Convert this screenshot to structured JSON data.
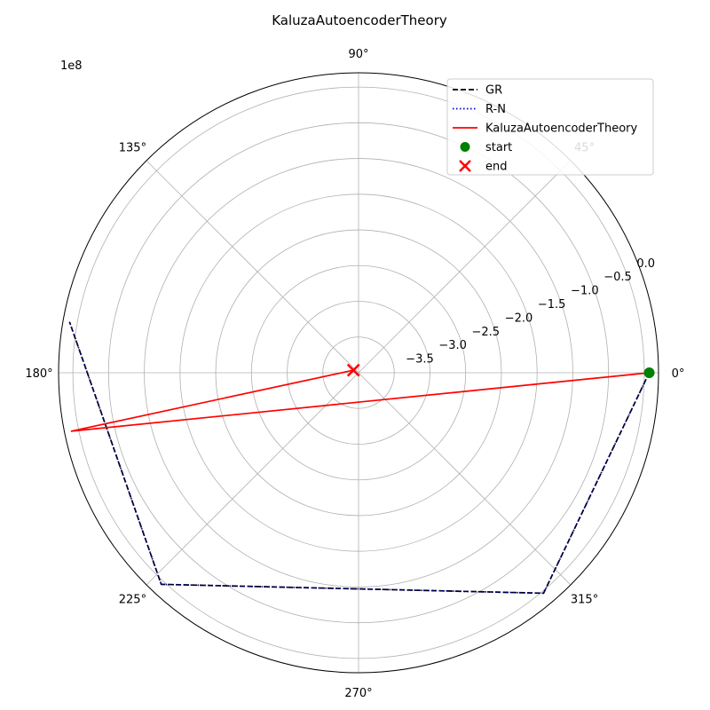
{
  "chart_data": {
    "type": "line",
    "subtype": "polar",
    "title": "KaluzaAutoencoderTheory",
    "r_offset_label": "1e8",
    "r_unit_multiplier": 100000000,
    "r_range": [
      -4.0,
      0.2
    ],
    "theta_unit": "degrees",
    "grid": true,
    "legend_position": "top-right",
    "theta_ticks": [
      {
        "deg": 0,
        "label": "0°"
      },
      {
        "deg": 45,
        "label": "45°"
      },
      {
        "deg": 90,
        "label": "90°"
      },
      {
        "deg": 135,
        "label": "135°"
      },
      {
        "deg": 180,
        "label": "180°"
      },
      {
        "deg": 225,
        "label": "225°"
      },
      {
        "deg": 270,
        "label": "270°"
      },
      {
        "deg": 315,
        "label": "315°"
      }
    ],
    "r_ticks": [
      {
        "value": -3.5,
        "label": "−3.5"
      },
      {
        "value": -3.0,
        "label": "−3.0"
      },
      {
        "value": -2.5,
        "label": "−2.5"
      },
      {
        "value": -2.0,
        "label": "−2.0"
      },
      {
        "value": -1.5,
        "label": "−1.5"
      },
      {
        "value": -1.0,
        "label": "−1.0"
      },
      {
        "value": -0.5,
        "label": "−0.5"
      },
      {
        "value": 0.0,
        "label": "0.0"
      }
    ],
    "series": [
      {
        "name": "GR",
        "color": "#000000",
        "style": "dashed",
        "points": [
          {
            "theta": 0,
            "r": 0.07
          },
          {
            "theta": 310,
            "r": 0.03
          },
          {
            "theta": 227,
            "r": 0.05
          },
          {
            "theta": 170,
            "r": 0.11
          }
        ]
      },
      {
        "name": "R-N",
        "color": "#00008b",
        "style": "dotted",
        "points": [
          {
            "theta": 0,
            "r": 0.07
          },
          {
            "theta": 310,
            "r": 0.03
          },
          {
            "theta": 227,
            "r": 0.05
          },
          {
            "theta": 170,
            "r": 0.11
          }
        ]
      },
      {
        "name": "KaluzaAutoencoderTheory",
        "color": "#ff0000",
        "style": "solid",
        "points": [
          {
            "theta": 0,
            "r": 0.07
          },
          {
            "theta": 191.5,
            "r": 0.11
          },
          {
            "theta": 153,
            "r": -3.92
          }
        ]
      }
    ],
    "markers": [
      {
        "name": "start",
        "color": "#008000",
        "shape": "circle",
        "theta": 0,
        "r": 0.07
      },
      {
        "name": "end",
        "color": "#ff0000",
        "shape": "x",
        "theta": 153,
        "r": -3.92
      }
    ],
    "legend": [
      {
        "label": "GR",
        "kind": "line",
        "color": "#000000",
        "style": "dashed"
      },
      {
        "label": "R-N",
        "kind": "line",
        "color": "#0000cd",
        "style": "dotted"
      },
      {
        "label": "KaluzaAutoencoderTheory",
        "kind": "line",
        "color": "#ff0000",
        "style": "solid"
      },
      {
        "label": "start",
        "kind": "circle",
        "color": "#008000"
      },
      {
        "label": "end",
        "kind": "x",
        "color": "#ff0000"
      }
    ]
  }
}
